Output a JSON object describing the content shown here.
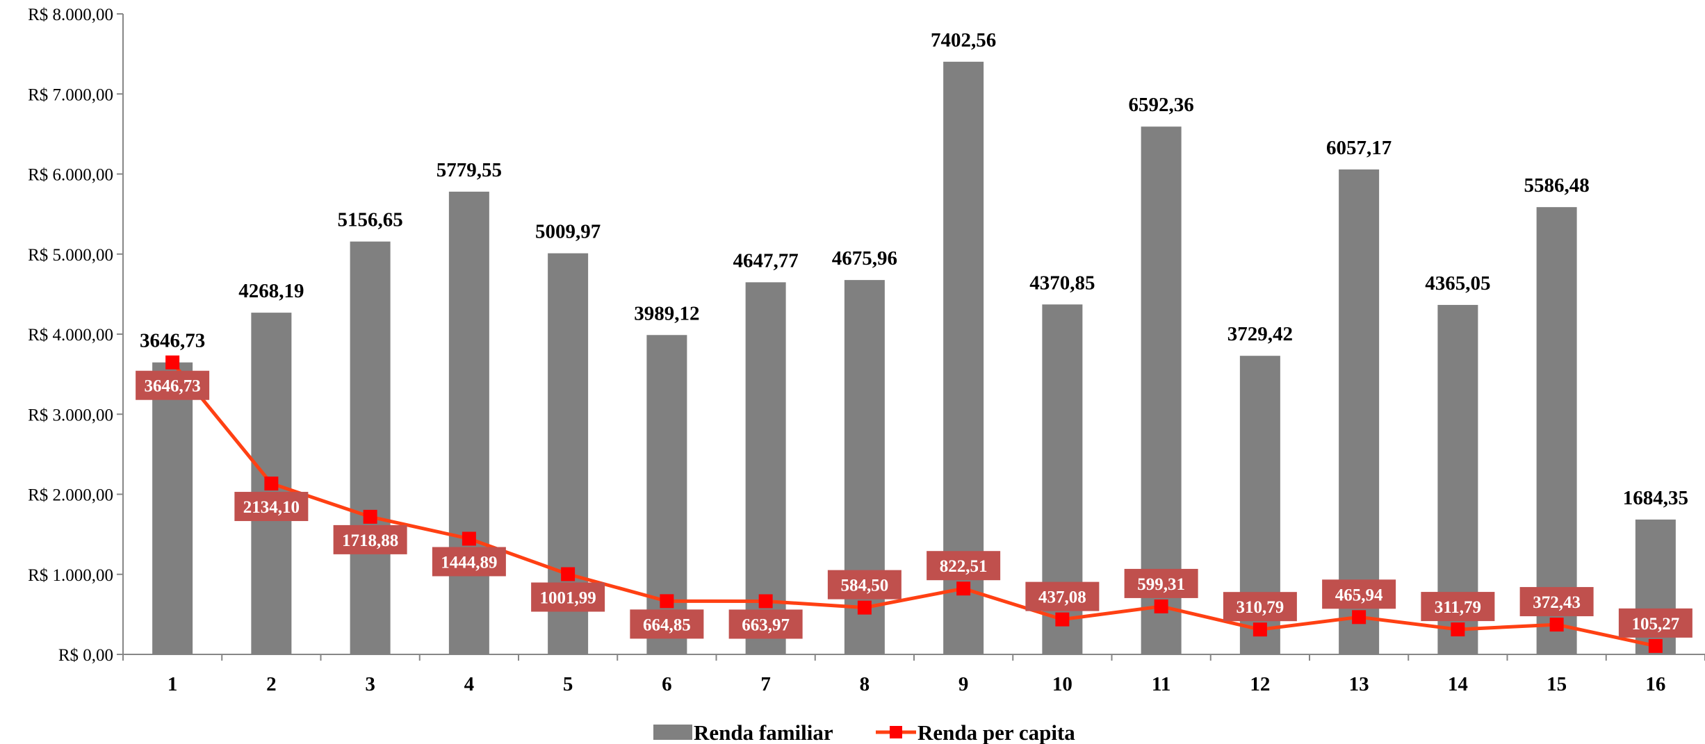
{
  "chart_data": {
    "type": "bar",
    "categories": [
      "1",
      "2",
      "3",
      "4",
      "5",
      "6",
      "7",
      "8",
      "9",
      "10",
      "11",
      "12",
      "13",
      "14",
      "15",
      "16"
    ],
    "series": [
      {
        "name": "Renda familiar",
        "type": "bar",
        "color": "#808080",
        "values": [
          3646.73,
          4268.19,
          5156.65,
          5779.55,
          5009.97,
          3989.12,
          4647.77,
          4675.96,
          7402.56,
          4370.85,
          6592.36,
          3729.42,
          6057.17,
          4365.05,
          5586.48,
          1684.35
        ],
        "labels": [
          "3646,73",
          "4268,19",
          "5156,65",
          "5779,55",
          "5009,97",
          "3989,12",
          "4647,77",
          "4675,96",
          "7402,56",
          "4370,85",
          "6592,36",
          "3729,42",
          "6057,17",
          "4365,05",
          "5586,48",
          "1684,35"
        ]
      },
      {
        "name": "Renda per capita",
        "type": "line",
        "color": "#ff0000",
        "line_color": "#ff4013",
        "label_bg": "#c0504d",
        "values": [
          3646.73,
          2134.1,
          1718.88,
          1444.89,
          1001.99,
          664.85,
          663.97,
          584.5,
          822.51,
          437.08,
          599.31,
          310.79,
          465.94,
          311.79,
          372.43,
          105.27
        ],
        "labels": [
          "3646,73",
          "2134,10",
          "1718,88",
          "1444,89",
          "1001,99",
          "664,85",
          "663,97",
          "584,50",
          "822,51",
          "437,08",
          "599,31",
          "310,79",
          "465,94",
          "311,79",
          "372,43",
          "105,27"
        ],
        "label_position": [
          "below",
          "below",
          "below",
          "below",
          "below",
          "below",
          "below",
          "above",
          "above",
          "above",
          "above",
          "above",
          "above",
          "above",
          "above",
          "above"
        ]
      }
    ],
    "yticks": [
      0,
      1000,
      2000,
      3000,
      4000,
      5000,
      6000,
      7000,
      8000
    ],
    "ytick_labels": [
      "R$ 0,00",
      "R$ 1.000,00",
      "R$ 2.000,00",
      "R$ 3.000,00",
      "R$ 4.000,00",
      "R$ 5.000,00",
      "R$ 6.000,00",
      "R$ 7.000,00",
      "R$ 8.000,00"
    ],
    "ylim": [
      0,
      8000
    ],
    "grid": false,
    "legend": "bottom",
    "title": "",
    "xlabel": "",
    "ylabel": ""
  }
}
